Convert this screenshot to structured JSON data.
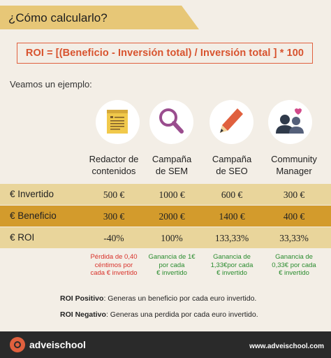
{
  "title": "¿Cómo calcularlo?",
  "formula": "ROI = [(Beneficio - Inversión total) / Inversión total ] * 100",
  "intro": "Veamos un ejemplo:",
  "columns": [
    {
      "line1": "Redactor de",
      "line2": "contenidos",
      "icon": "document-icon"
    },
    {
      "line1": "Campaña",
      "line2": "de SEM",
      "icon": "magnifier-icon"
    },
    {
      "line1": "Campaña",
      "line2": "de SEO",
      "icon": "pencil-icon"
    },
    {
      "line1": "Community",
      "line2": "Manager",
      "icon": "people-heart-icon"
    }
  ],
  "rows": [
    {
      "label": "€ Invertido",
      "values": [
        "500 €",
        "1000 €",
        "600 €",
        "300 €"
      ]
    },
    {
      "label": "€ Beneficio",
      "values": [
        "300 €",
        "2000 €",
        "1400 €",
        "400 €"
      ]
    },
    {
      "label": "€ ROI",
      "values": [
        "-40%",
        "100%",
        "133,33%",
        "33,33%"
      ]
    }
  ],
  "notes": [
    {
      "lines": [
        "Pérdida de 0,40",
        "céntimos por",
        "cada € invertido"
      ],
      "tone": "negative"
    },
    {
      "lines": [
        "Ganancia de 1€",
        "por cada",
        "€ invertido"
      ],
      "tone": "positive"
    },
    {
      "lines": [
        "Ganancia de",
        "1,33€por cada",
        "€ invertido"
      ],
      "tone": "positive"
    },
    {
      "lines": [
        "Ganancia de",
        "0,33€ por cada",
        "€ invertido"
      ],
      "tone": "positive"
    }
  ],
  "explanations": [
    {
      "term": "ROI Positivo",
      "text": ": Generas un beneficio por cada euro invertido."
    },
    {
      "term": "ROI Negativo",
      "text": ": Generas una perdida por cada euro invertido."
    }
  ],
  "footer": {
    "brand": "adveischool",
    "url": "www.adveischool.com"
  },
  "colors": {
    "accent": "#e0603e",
    "banner": "#e7c777",
    "row_light": "#e9d59b",
    "row_dark": "#d39b2c",
    "negative": "#d8322b",
    "positive": "#2a8c2f"
  }
}
